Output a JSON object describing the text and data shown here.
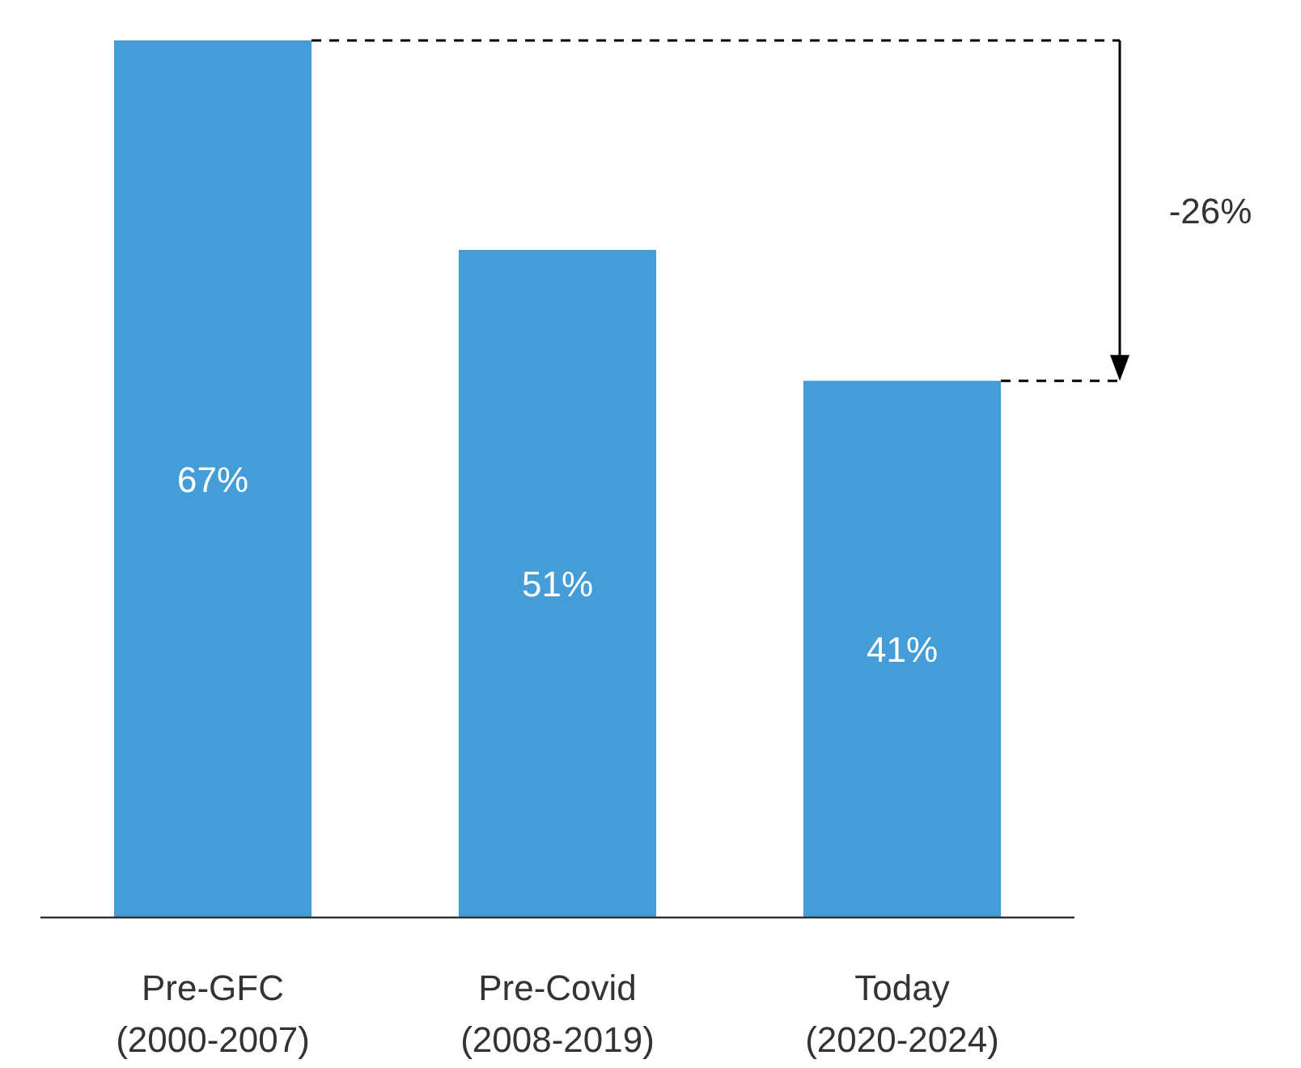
{
  "chart_data": {
    "type": "bar",
    "categories": [
      "Pre-GFC (2000-2007)",
      "Pre-Covid (2008-2019)",
      "Today (2020-2024)"
    ],
    "values": [
      67,
      51,
      41
    ],
    "value_labels": [
      "67%",
      "51%",
      "41%"
    ],
    "color": "#449dd7",
    "annotations": [
      {
        "text": "-26%"
      }
    ]
  }
}
